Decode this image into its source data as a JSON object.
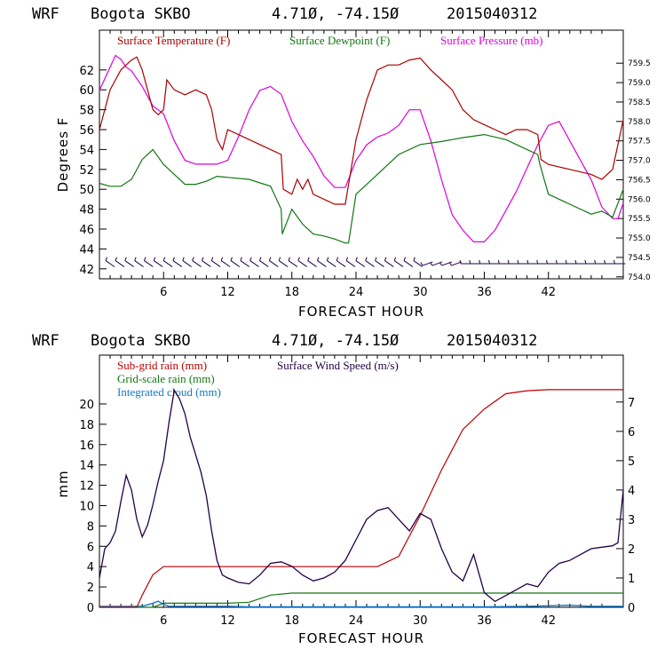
{
  "colors": {
    "temperature": "#aa0000",
    "dewpoint": "#117711",
    "pressure": "#dd00dd",
    "wind": "#220044",
    "subgrid": "#bb0000",
    "gridscale": "#117711",
    "cloud": "#1177cc"
  },
  "chart_data": [
    {
      "type": "line",
      "header": {
        "model": "WRF",
        "station": "Bogota SKBO",
        "coords": "4.71Ø, -74.15Ø",
        "run": "2015040312"
      },
      "xlabel": "FORECAST HOUR",
      "ylabel": "Degrees F",
      "xlim": [
        0,
        49
      ],
      "ylim": [
        41,
        66
      ],
      "y2lim": [
        753.95,
        760.35
      ],
      "x_ticks": [
        "6",
        "12",
        "18",
        "24",
        "30",
        "36",
        "42"
      ],
      "y_ticks": [
        "42",
        "44",
        "46",
        "48",
        "50",
        "52",
        "54",
        "56",
        "58",
        "60",
        "62"
      ],
      "y2_ticks": [
        "754.0",
        "754.5",
        "755.0",
        "755.5",
        "756.0",
        "756.5",
        "757.0",
        "757.5",
        "758.0",
        "758.5",
        "759.0",
        "759.5"
      ],
      "legend": [
        "Surface Temperature (F)",
        "Surface Dewpoint (F)",
        "Surface Pressure (mb)"
      ],
      "series": [
        {
          "name": "Surface Temperature (F)",
          "axis": "left",
          "x": [
            0,
            0.5,
            1,
            2,
            3,
            3.5,
            4,
            5,
            5.5,
            6,
            6.3,
            7,
            8,
            9,
            10,
            10.5,
            11,
            11.5,
            12,
            14,
            16,
            17,
            17.2,
            18,
            18.5,
            19,
            19.5,
            20,
            22,
            23,
            24,
            25,
            26,
            27,
            28,
            29,
            30,
            31,
            32,
            33,
            34,
            35,
            36,
            37,
            38,
            39,
            40,
            41,
            41.3,
            42,
            44,
            46,
            47,
            48,
            49
          ],
          "y": [
            56,
            58,
            60,
            62,
            63,
            63.3,
            62,
            58,
            57.5,
            58,
            61,
            60,
            59.5,
            60,
            59.5,
            58,
            55,
            54,
            56,
            55,
            54,
            53.5,
            50,
            49.5,
            51,
            50,
            51,
            49.5,
            48.5,
            48.5,
            55,
            59,
            62,
            62.5,
            62.5,
            63,
            63.2,
            62,
            61,
            60,
            58,
            57,
            56.5,
            56,
            55.5,
            56,
            56,
            55.5,
            53,
            52.5,
            52,
            51.5,
            51,
            52,
            57
          ]
        },
        {
          "name": "Surface Dewpoint (F)",
          "axis": "left",
          "x": [
            0,
            1,
            2,
            3,
            4,
            5,
            6,
            7,
            8,
            9,
            10,
            11,
            12,
            14,
            16,
            17,
            17.1,
            18,
            19,
            20,
            21,
            22,
            23,
            23.3,
            24,
            26,
            28,
            30,
            32,
            34,
            36,
            38,
            40,
            41,
            41.2,
            42,
            44,
            46,
            47,
            48,
            49
          ],
          "y": [
            50.6,
            50.3,
            50.3,
            51,
            53,
            54,
            52.5,
            51.5,
            50.5,
            50.5,
            50.8,
            51.3,
            51.2,
            51,
            50.3,
            48,
            45.5,
            48,
            46.5,
            45.5,
            45.3,
            45,
            44.6,
            44.6,
            49.5,
            51.5,
            53.5,
            54.5,
            54.8,
            55.2,
            55.5,
            55,
            54,
            53.5,
            52.5,
            49.5,
            48.5,
            47.5,
            47.8,
            47.2,
            50
          ]
        },
        {
          "name": "Surface Pressure (mb)",
          "axis": "right",
          "x": [
            0,
            0.5,
            1,
            1.5,
            2,
            2.5,
            3,
            4,
            5,
            6,
            7,
            8,
            9,
            10,
            11,
            12,
            13,
            14,
            15,
            16,
            17,
            18,
            19,
            20,
            21,
            22,
            23,
            24,
            25,
            26,
            27,
            28,
            29,
            30,
            31,
            32,
            33,
            34,
            35,
            36,
            37,
            38,
            39,
            40,
            41,
            42,
            43,
            44,
            45,
            46,
            47,
            48,
            48.5,
            49
          ],
          "y": [
            758.8,
            759.1,
            759.4,
            759.7,
            759.6,
            759.4,
            759.3,
            758.9,
            758.4,
            758.2,
            757.5,
            757.0,
            756.9,
            756.9,
            756.9,
            757.0,
            757.6,
            758.3,
            758.8,
            758.9,
            758.7,
            758.0,
            757.5,
            757.1,
            756.6,
            756.3,
            756.3,
            757.0,
            757.4,
            757.6,
            757.7,
            757.9,
            758.3,
            758.3,
            757.5,
            756.5,
            755.6,
            755.2,
            754.9,
            754.9,
            755.2,
            755.7,
            756.2,
            756.8,
            757.4,
            757.9,
            758.0,
            757.5,
            757.0,
            756.5,
            755.8,
            755.5,
            755.5,
            755.9
          ]
        }
      ],
      "wind_barbs": "wind barbs along the bottom of the temperature panel"
    },
    {
      "type": "line",
      "header": {
        "model": "WRF",
        "station": "Bogota SKBO",
        "coords": "4.71Ø, -74.15Ø",
        "run": "2015040312"
      },
      "xlabel": "FORECAST HOUR",
      "ylabel": "mm",
      "xlim": [
        0,
        49
      ],
      "ylim": [
        0,
        24.8
      ],
      "y2lim": [
        0,
        8.6
      ],
      "x_ticks": [
        "6",
        "12",
        "18",
        "24",
        "30",
        "36",
        "42"
      ],
      "y_ticks": [
        "0",
        "2",
        "4",
        "6",
        "8",
        "10",
        "12",
        "14",
        "16",
        "18",
        "20"
      ],
      "y2_ticks": [
        "0",
        "1",
        "2",
        "3",
        "4",
        "5",
        "6",
        "7"
      ],
      "legend": [
        "Sub-grid rain (mm)",
        "Grid-scale rain (mm)",
        "Integrated cloud (mm)",
        "Surface Wind Speed (m/s)"
      ],
      "series": [
        {
          "name": "Sub-grid rain (mm)",
          "axis": "left",
          "x": [
            0,
            3.5,
            4,
            5,
            6,
            10,
            20,
            26,
            28,
            30,
            32,
            34,
            36,
            38,
            40,
            42,
            44,
            46,
            48,
            49
          ],
          "y": [
            0,
            0,
            1.2,
            3.2,
            4,
            4,
            4,
            4,
            5,
            9,
            13.5,
            17.5,
            19.5,
            21,
            21.3,
            21.4,
            21.4,
            21.4,
            21.4,
            21.4
          ]
        },
        {
          "name": "Grid-scale rain (mm)",
          "axis": "left",
          "x": [
            0,
            5,
            6,
            10,
            12,
            14,
            16,
            18,
            20,
            30,
            40,
            49
          ],
          "y": [
            0,
            0,
            0.4,
            0.4,
            0.4,
            0.5,
            1.2,
            1.4,
            1.4,
            1.4,
            1.4,
            1.4
          ]
        },
        {
          "name": "Integrated cloud (mm)",
          "axis": "left",
          "x": [
            0,
            4,
            5,
            5.5,
            6,
            6.5,
            8,
            10,
            12,
            14,
            20,
            30,
            36,
            40,
            42,
            44,
            46,
            49
          ],
          "y": [
            0.1,
            0.1,
            0.4,
            0.6,
            0.3,
            0.1,
            0.1,
            0.1,
            0.1,
            0.05,
            0.05,
            0.05,
            0.05,
            0.1,
            0.15,
            0.2,
            0.1,
            0.1
          ]
        },
        {
          "name": "Surface Wind Speed (m/s)",
          "axis": "right",
          "x": [
            0,
            0.5,
            1,
            1.5,
            2,
            2.5,
            3,
            3.5,
            4,
            4.5,
            5,
            5.5,
            6,
            6.5,
            7,
            7.5,
            8,
            8.5,
            9,
            9.5,
            10,
            10.5,
            11,
            11.5,
            12,
            13,
            14,
            15,
            16,
            17,
            18,
            19,
            20,
            21,
            22,
            23,
            24,
            25,
            26,
            27,
            28,
            29,
            30,
            31,
            32,
            33,
            34,
            35,
            36,
            37,
            38,
            39,
            40,
            41,
            42,
            43,
            44,
            45,
            46,
            47,
            48,
            48.5,
            49
          ],
          "y": [
            1.0,
            2.0,
            2.2,
            2.6,
            3.6,
            4.5,
            4.0,
            3.0,
            2.4,
            2.8,
            3.5,
            4.3,
            5.0,
            6.3,
            7.4,
            7.1,
            6.6,
            5.8,
            5.2,
            4.6,
            3.8,
            2.6,
            1.6,
            1.1,
            1.0,
            0.85,
            0.8,
            1.1,
            1.5,
            1.55,
            1.4,
            1.1,
            0.9,
            1.0,
            1.2,
            1.6,
            2.3,
            3.0,
            3.3,
            3.4,
            3.0,
            2.6,
            3.2,
            3.0,
            2.0,
            1.2,
            0.9,
            1.8,
            0.5,
            0.2,
            0.4,
            0.6,
            0.8,
            0.7,
            1.2,
            1.5,
            1.6,
            1.8,
            2.0,
            2.05,
            2.1,
            2.2,
            4.0
          ]
        }
      ]
    }
  ]
}
